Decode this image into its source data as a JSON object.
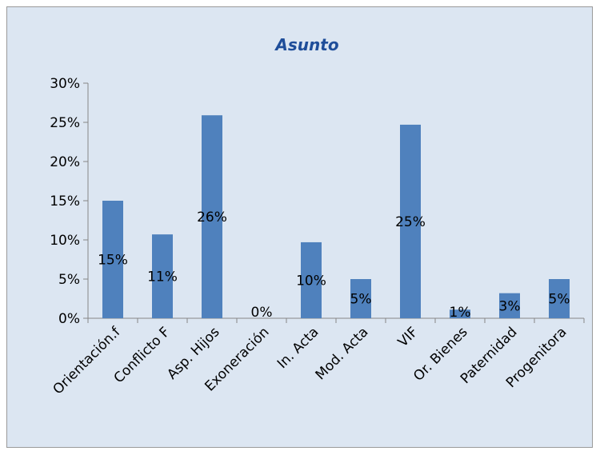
{
  "chart_data": {
    "type": "bar",
    "title": "Asunto",
    "categories": [
      "Orientación.f",
      "Conflicto F",
      "Asp. Hijos",
      "Exoneración",
      "In. Acta",
      "Mod. Acta",
      "VIF",
      "Or. Bienes",
      "Paternidad",
      "Progenitora"
    ],
    "values": [
      0.15,
      0.107,
      0.259,
      0,
      0.097,
      0.05,
      0.247,
      0.011,
      0.032,
      0.05
    ],
    "data_labels": [
      "15%",
      "11%",
      "26%",
      "0%",
      "10%",
      "5%",
      "25%",
      "1%",
      "3%",
      "5%"
    ],
    "y_ticks": [
      "0%",
      "5%",
      "10%",
      "15%",
      "20%",
      "25%",
      "30%"
    ],
    "ylim": [
      0,
      0.3
    ],
    "grid": false,
    "legend": "none",
    "xlabel": "",
    "ylabel": "",
    "colors": {
      "bar": "#4f81bd",
      "background": "#dce6f2",
      "title": "#1f4e9a",
      "axis": "#868686"
    }
  }
}
